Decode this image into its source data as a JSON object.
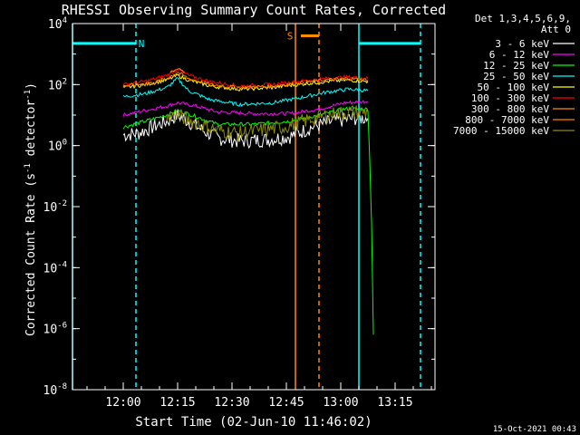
{
  "chart_data": {
    "type": "line",
    "title": "RHESSI Observing Summary Count Rates, Corrected",
    "xlabel": "Start Time (02-Jun-10 11:46:02)",
    "ylabel_parts": [
      "Corrected Count Rate (s",
      "-1",
      " detector",
      "-1",
      ")"
    ],
    "x_units": "minutes after 11:46:02",
    "xlim": [
      0,
      100
    ],
    "ylim_log10": [
      -8,
      4
    ],
    "y_ticks": [
      {
        "exp": 4,
        "base": "10",
        "sup": "4"
      },
      {
        "exp": 2,
        "base": "10",
        "sup": "2"
      },
      {
        "exp": 0,
        "base": "10",
        "sup": "0"
      },
      {
        "exp": -2,
        "base": "10",
        "sup": "-2"
      },
      {
        "exp": -4,
        "base": "10",
        "sup": "-4"
      },
      {
        "exp": -6,
        "base": "10",
        "sup": "-6"
      },
      {
        "exp": -8,
        "base": "10",
        "sup": "-8"
      }
    ],
    "x_ticks": [
      {
        "t": 14,
        "label": "12:00"
      },
      {
        "t": 29,
        "label": "12:15"
      },
      {
        "t": 44,
        "label": "12:30"
      },
      {
        "t": 59,
        "label": "12:45"
      },
      {
        "t": 74,
        "label": "13:00"
      },
      {
        "t": 89,
        "label": "13:15"
      }
    ],
    "legend_header": [
      "Det 1,3,4,5,6,9,",
      "Att 0"
    ],
    "series": [
      {
        "name": "3 - 6 keV",
        "color": "#ffffff",
        "points": [
          [
            14,
            0.35
          ],
          [
            18,
            0.4
          ],
          [
            22,
            0.6
          ],
          [
            26,
            0.8
          ],
          [
            29,
            1.0
          ],
          [
            32,
            0.8
          ],
          [
            36,
            0.5
          ],
          [
            40,
            0.25
          ],
          [
            46,
            0.15
          ],
          [
            54,
            0.2
          ],
          [
            60,
            0.3
          ],
          [
            66,
            0.6
          ],
          [
            72,
            0.8
          ],
          [
            78,
            0.9
          ],
          [
            81.5,
            0.9
          ]
        ]
      },
      {
        "name": "6 - 12 keV",
        "color": "#ff00ff",
        "points": [
          [
            14,
            1.0
          ],
          [
            20,
            1.15
          ],
          [
            26,
            1.3
          ],
          [
            29,
            1.4
          ],
          [
            34,
            1.3
          ],
          [
            40,
            1.1
          ],
          [
            50,
            1.05
          ],
          [
            60,
            1.05
          ],
          [
            68,
            1.2
          ],
          [
            75,
            1.4
          ],
          [
            81.5,
            1.45
          ]
        ]
      },
      {
        "name": "12 - 25 keV",
        "color": "#00ff00",
        "points": [
          [
            14,
            0.6
          ],
          [
            20,
            0.8
          ],
          [
            26,
            1.0
          ],
          [
            29,
            1.15
          ],
          [
            33,
            1.0
          ],
          [
            40,
            0.7
          ],
          [
            50,
            0.7
          ],
          [
            60,
            0.8
          ],
          [
            68,
            1.0
          ],
          [
            75,
            1.2
          ],
          [
            81.5,
            1.2
          ],
          [
            82,
            -0.5
          ],
          [
            82.5,
            -2.5
          ],
          [
            83,
            -6.2
          ]
        ]
      },
      {
        "name": "25 - 50 keV",
        "color": "#00ffff",
        "points": [
          [
            14,
            1.6
          ],
          [
            20,
            1.7
          ],
          [
            26,
            1.9
          ],
          [
            29,
            2.2
          ],
          [
            32,
            1.8
          ],
          [
            38,
            1.5
          ],
          [
            46,
            1.35
          ],
          [
            55,
            1.4
          ],
          [
            62,
            1.55
          ],
          [
            70,
            1.75
          ],
          [
            76,
            1.85
          ],
          [
            81.5,
            1.8
          ]
        ]
      },
      {
        "name": "50 - 100 keV",
        "color": "#ffff00",
        "points": [
          [
            14,
            1.9
          ],
          [
            20,
            2.0
          ],
          [
            26,
            2.15
          ],
          [
            29,
            2.3
          ],
          [
            32,
            2.15
          ],
          [
            38,
            1.95
          ],
          [
            46,
            1.85
          ],
          [
            55,
            1.9
          ],
          [
            62,
            2.0
          ],
          [
            70,
            2.1
          ],
          [
            76,
            2.15
          ],
          [
            81.5,
            2.1
          ]
        ]
      },
      {
        "name": "100 - 300 keV",
        "color": "#ff0000",
        "points": [
          [
            14,
            2.0
          ],
          [
            20,
            2.1
          ],
          [
            26,
            2.3
          ],
          [
            29,
            2.5
          ],
          [
            32,
            2.3
          ],
          [
            38,
            2.1
          ],
          [
            46,
            1.95
          ],
          [
            55,
            2.0
          ],
          [
            62,
            2.1
          ],
          [
            70,
            2.2
          ],
          [
            76,
            2.25
          ],
          [
            81.5,
            2.2
          ]
        ]
      },
      {
        "name": "300 - 800 keV",
        "color": "#ff8c00",
        "points": [
          [
            27,
            2.4
          ],
          [
            29,
            2.55
          ],
          [
            31,
            2.4
          ]
        ]
      },
      {
        "name": "800 - 7000 keV",
        "color": "#ff7f00",
        "points": [
          [
            14,
            1.95
          ],
          [
            22,
            2.05
          ],
          [
            26,
            2.2
          ],
          [
            29,
            2.4
          ],
          [
            32,
            2.2
          ],
          [
            38,
            2.0
          ],
          [
            46,
            1.9
          ],
          [
            55,
            1.95
          ],
          [
            62,
            2.05
          ],
          [
            70,
            2.15
          ],
          [
            76,
            2.2
          ],
          [
            81.5,
            2.15
          ]
        ]
      },
      {
        "name": "7000 - 15000 keV",
        "color": "#8b8b00",
        "points": [
          [
            26,
            0.9
          ],
          [
            29,
            1.0
          ],
          [
            33,
            0.8
          ],
          [
            40,
            0.5
          ],
          [
            46,
            0.4
          ],
          [
            52,
            0.5
          ],
          [
            58,
            0.6
          ],
          [
            64,
            0.8
          ],
          [
            70,
            1.0
          ],
          [
            76,
            1.1
          ],
          [
            81.5,
            1.1
          ]
        ]
      }
    ],
    "flag_bars": [
      {
        "color": "#00ffff",
        "y_log10": 3.35,
        "from": 0,
        "to": 17.5
      },
      {
        "color": "#00ffff",
        "y_log10": 3.35,
        "from": 79,
        "to": 96
      },
      {
        "color": "#ff8c00",
        "y_log10": 3.6,
        "from": 63,
        "to": 68
      }
    ],
    "flag_labels": [
      {
        "text": "N",
        "color": "#00ffff",
        "t": 19,
        "y_log10": 3.35
      },
      {
        "text": "S",
        "color": "#ff8c00",
        "t": 60,
        "y_log10": 3.6
      }
    ],
    "vlines": [
      {
        "t": 0,
        "color": "#00ffff",
        "style": "solid"
      },
      {
        "t": 17.5,
        "color": "#00ffff",
        "style": "dashed"
      },
      {
        "t": 61.5,
        "color": "#ff8c00",
        "style": "solid"
      },
      {
        "t": 68,
        "color": "#ff8c00",
        "style": "dashed"
      },
      {
        "t": 79,
        "color": "#00ffff",
        "style": "solid"
      },
      {
        "t": 96,
        "color": "#00ffff",
        "style": "dashed"
      }
    ]
  },
  "footer_timestamp": "15-Oct-2021 00:43"
}
